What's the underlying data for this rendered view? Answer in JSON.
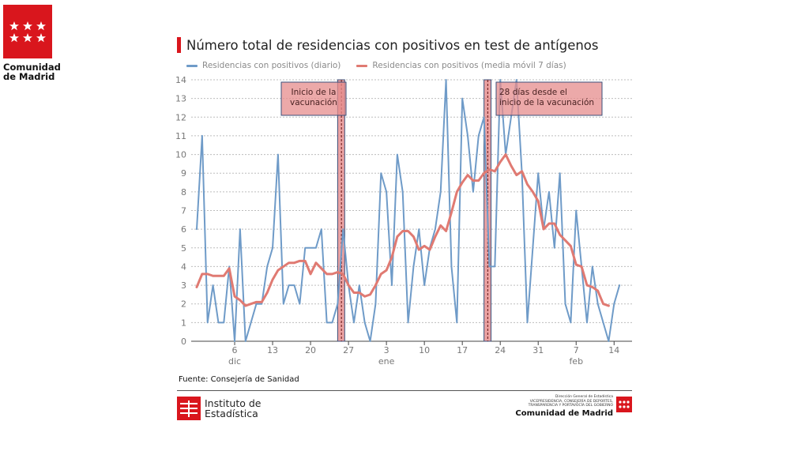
{
  "header": {
    "org_line1": "Comunidad",
    "org_line2": "de Madrid",
    "flag_color": "#d9161d"
  },
  "source": "Fuente: Consejería de Sanidad",
  "footer": {
    "ine_line1": "Instituto de",
    "ine_line2": "Estadística",
    "right_line1": "Dirección General de Estadística",
    "right_line2": "VICEPRESIDENCIA, CONSEJERÍA DE DEPORTES,",
    "right_line3": "TRANSPARENCIA Y PORTAVOCÍA DEL GOBIERNO",
    "right_org": "Comunidad de Madrid"
  },
  "chart_data": {
    "type": "line",
    "title": "Número total de residencias con positivos en test de antígenos",
    "ylim": [
      0,
      14
    ],
    "yticks": [
      0,
      1,
      2,
      3,
      4,
      5,
      6,
      7,
      8,
      9,
      10,
      11,
      12,
      13,
      14
    ],
    "xlim": [
      0,
      79
    ],
    "xticks": [
      {
        "x": 7,
        "label": "6",
        "month": "dic"
      },
      {
        "x": 14,
        "label": "13",
        "month": ""
      },
      {
        "x": 21,
        "label": "20",
        "month": ""
      },
      {
        "x": 28,
        "label": "27",
        "month": ""
      },
      {
        "x": 35,
        "label": "3",
        "month": "ene"
      },
      {
        "x": 42,
        "label": "10",
        "month": ""
      },
      {
        "x": 49,
        "label": "17",
        "month": ""
      },
      {
        "x": 56,
        "label": "24",
        "month": ""
      },
      {
        "x": 63,
        "label": "31",
        "month": ""
      },
      {
        "x": 70,
        "label": "7",
        "month": "feb"
      },
      {
        "x": 77,
        "label": "14",
        "month": ""
      }
    ],
    "grid": true,
    "legend_position": "top",
    "series": [
      {
        "name": "Residencias con positivos (diario)",
        "color": "#6f9bc8",
        "values": [
          6,
          11,
          1,
          3,
          1,
          1,
          4,
          0,
          6,
          0,
          1,
          2,
          2,
          4,
          5,
          10,
          2,
          3,
          3,
          2,
          5,
          5,
          5,
          6,
          1,
          1,
          2,
          6,
          3,
          1,
          3,
          1,
          0,
          2,
          9,
          8,
          3,
          10,
          8,
          1,
          4,
          6,
          3,
          5,
          6,
          8,
          14,
          4,
          1,
          13,
          11,
          8,
          11,
          12,
          4,
          4,
          14,
          10,
          12,
          14,
          9,
          1,
          5,
          9,
          6,
          8,
          5,
          9,
          2,
          1,
          7,
          4,
          1,
          4,
          2,
          1,
          0,
          2,
          3
        ]
      },
      {
        "name": "Residencias con positivos (media móvil 7 días)",
        "color": "#e07a72",
        "values": [
          2.9,
          3.6,
          3.6,
          3.5,
          3.5,
          3.5,
          3.9,
          2.4,
          2.2,
          1.9,
          2.0,
          2.1,
          2.1,
          2.6,
          3.3,
          3.8,
          4.0,
          4.2,
          4.2,
          4.3,
          4.3,
          3.6,
          4.2,
          3.9,
          3.6,
          3.6,
          3.7,
          3.6,
          3.0,
          2.6,
          2.6,
          2.4,
          2.5,
          3.0,
          3.6,
          3.8,
          4.5,
          5.6,
          5.9,
          5.9,
          5.6,
          4.9,
          5.1,
          4.9,
          5.6,
          6.2,
          5.9,
          6.9,
          8.0,
          8.5,
          8.9,
          8.6,
          8.6,
          9.0,
          9.2,
          9.1,
          9.6,
          10.0,
          9.4,
          8.9,
          9.1,
          8.4,
          8.0,
          7.5,
          6.0,
          6.3,
          6.3,
          5.7,
          5.4,
          5.1,
          4.1,
          4.0,
          3.0,
          2.9,
          2.7,
          2.0,
          1.9
        ]
      }
    ],
    "annotations": [
      {
        "label": "Inicio de la vacunación",
        "x_start": 26.0,
        "x_end": 27.3,
        "line_x": 26.7
      },
      {
        "label": "28 días desde el inicio de la vacunación",
        "x_start": 53.0,
        "x_end": 54.3,
        "line_x": 53.7
      }
    ]
  }
}
